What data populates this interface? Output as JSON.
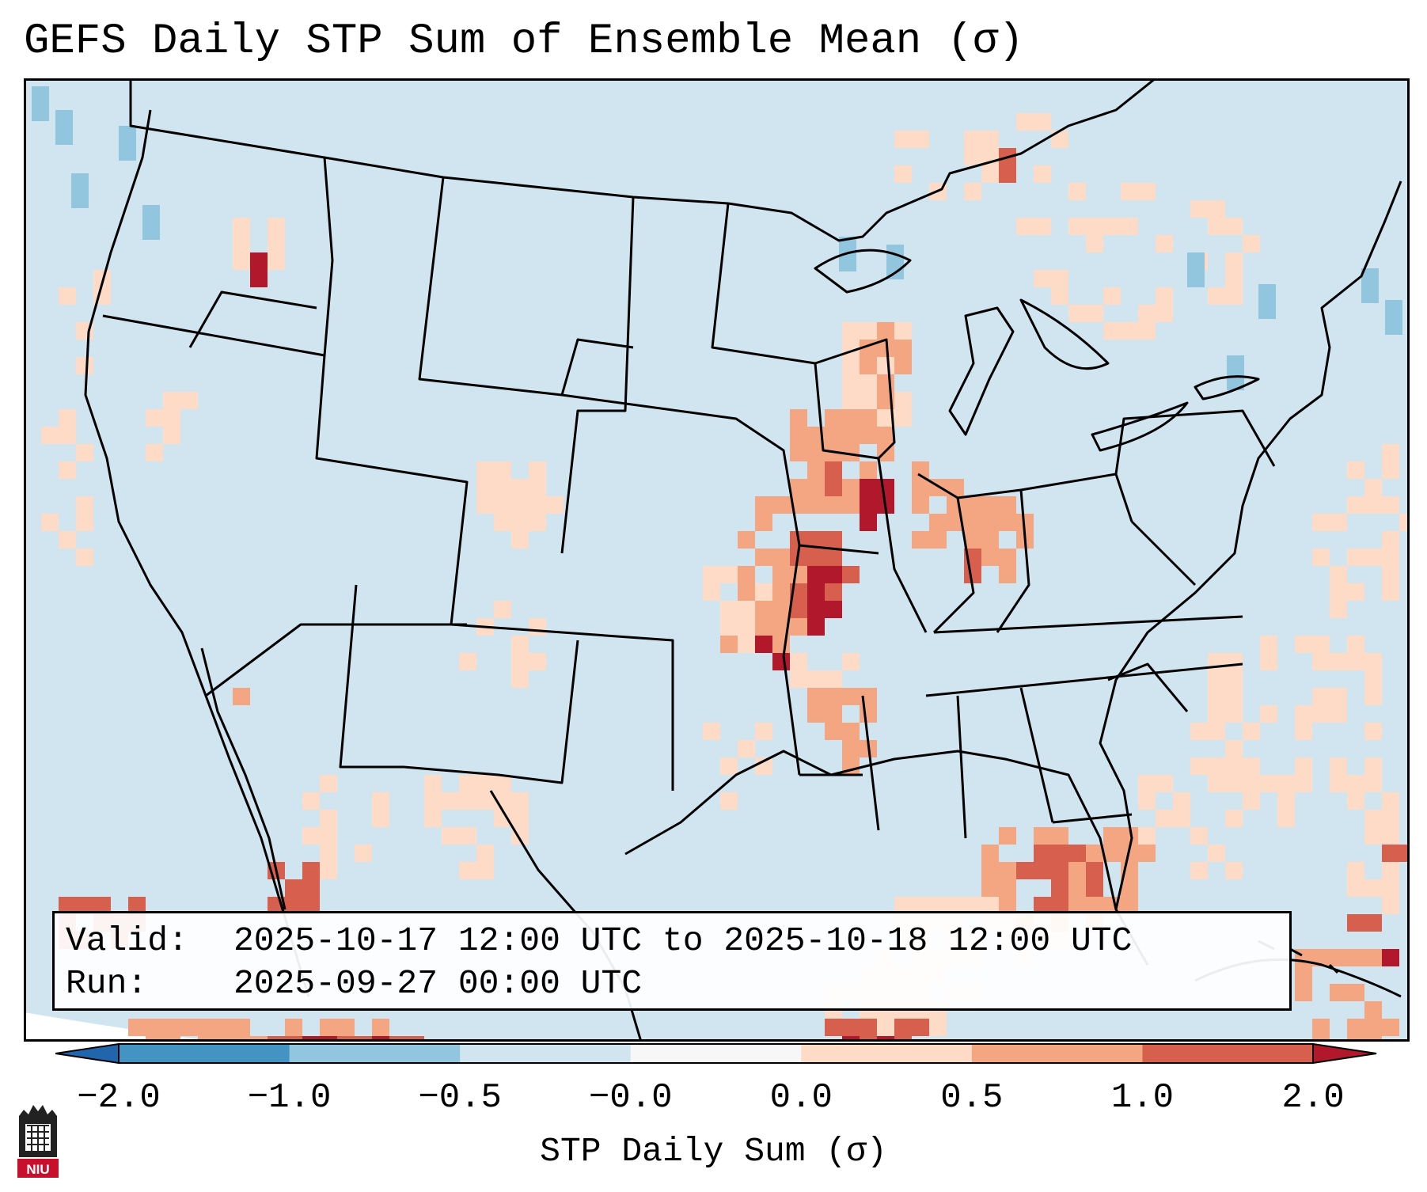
{
  "title": "GEFS Daily STP Sum of Ensemble Mean (σ)",
  "info_box": {
    "valid_label": "Valid:",
    "valid_value": "2025-10-17 12:00 UTC to 2025-10-18 12:00 UTC",
    "run_label": "Run:",
    "run_value": "2025-09-27 00:00 UTC"
  },
  "colorbar": {
    "label": "STP Daily Sum (σ)",
    "ticks": [
      "−2.0",
      "−1.0",
      "−0.5",
      "−0.0",
      "0.0",
      "0.5",
      "1.0",
      "2.0"
    ],
    "bins": [
      {
        "range": "< -2.0",
        "color": "#2166ac"
      },
      {
        "range": "-2.0 to -1.0",
        "color": "#4393c3"
      },
      {
        "range": "-1.0 to -0.5",
        "color": "#92c5de"
      },
      {
        "range": "-0.5 to -0.0",
        "color": "#d1e5f0"
      },
      {
        "range": "-0.0 to 0.0",
        "color": "#f7f7f7"
      },
      {
        "range": "0.0 to 0.5",
        "color": "#fddbc7"
      },
      {
        "range": "0.5 to 1.0",
        "color": "#f4a582"
      },
      {
        "range": "1.0 to 2.0",
        "color": "#d6604d"
      },
      {
        "range": "> 2.0",
        "color": "#b2182b"
      }
    ]
  },
  "map": {
    "background_color": "#d1e5f0",
    "regions": [
      {
        "name": "Upper Midwest / Wisconsin",
        "level": "0.5 to 2.0"
      },
      {
        "name": "Iowa / Illinois / Missouri corridor",
        "level": "> 2.0"
      },
      {
        "name": "Indiana / Ohio Valley",
        "level": "1.0 to 2.0"
      },
      {
        "name": "Gulf of Mexico",
        "level": "0.5 to 2.0"
      },
      {
        "name": "Western Atlantic",
        "level": "0.0 to 1.0"
      }
    ]
  },
  "logo": {
    "text": "NIU"
  }
}
